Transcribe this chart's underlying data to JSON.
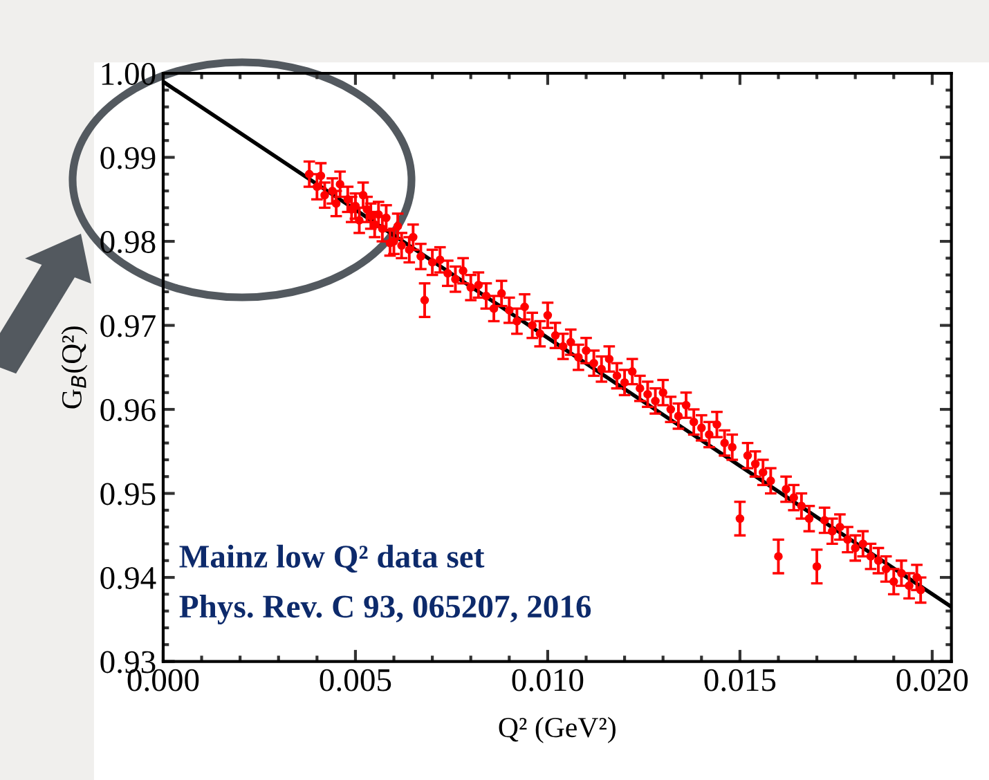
{
  "chart_data": {
    "type": "scatter",
    "xlabel": "Q² (GeV²)",
    "ylabel": "G$_{B}$(Q²)",
    "xlim": [
      0.0,
      0.0205
    ],
    "ylim": [
      0.93,
      1.0
    ],
    "xticks": [
      {
        "value": 0.0,
        "label": "0.000"
      },
      {
        "value": 0.005,
        "label": "0.005"
      },
      {
        "value": 0.01,
        "label": "0.010"
      },
      {
        "value": 0.015,
        "label": "0.015"
      },
      {
        "value": 0.02,
        "label": "0.020"
      }
    ],
    "yticks": [
      {
        "value": 0.93,
        "label": "0.93"
      },
      {
        "value": 0.94,
        "label": "0.94"
      },
      {
        "value": 0.95,
        "label": "0.95"
      },
      {
        "value": 0.96,
        "label": "0.96"
      },
      {
        "value": 0.97,
        "label": "0.97"
      },
      {
        "value": 0.98,
        "label": "0.98"
      },
      {
        "value": 0.99,
        "label": "0.99"
      },
      {
        "value": 1.0,
        "label": "1.00"
      }
    ],
    "grid": false,
    "legend": false,
    "annotations": [
      "Mainz low Q² data set",
      "Phys. Rev. C 93, 065207, 2016"
    ],
    "series": [
      {
        "type": "scatter",
        "marker": "circle",
        "color": "#ff0000",
        "x": [
          0.0038,
          0.004,
          0.0041,
          0.0042,
          0.0044,
          0.0045,
          0.0046,
          0.0048,
          0.0049,
          0.005,
          0.0051,
          0.0052,
          0.0053,
          0.0054,
          0.0055,
          0.0056,
          0.0057,
          0.0058,
          0.0059,
          0.006,
          0.0061,
          0.0062,
          0.0064,
          0.0065,
          0.0067,
          0.0068,
          0.007,
          0.0072,
          0.0074,
          0.0076,
          0.0078,
          0.008,
          0.0082,
          0.0084,
          0.0086,
          0.0088,
          0.009,
          0.0092,
          0.0094,
          0.0096,
          0.0098,
          0.01,
          0.0102,
          0.0104,
          0.0106,
          0.0108,
          0.011,
          0.0112,
          0.0114,
          0.0116,
          0.0118,
          0.012,
          0.0122,
          0.0124,
          0.0126,
          0.0128,
          0.013,
          0.0132,
          0.0134,
          0.0136,
          0.0138,
          0.014,
          0.0142,
          0.0144,
          0.0146,
          0.0148,
          0.015,
          0.0152,
          0.0154,
          0.0156,
          0.0158,
          0.016,
          0.0162,
          0.0164,
          0.0166,
          0.0168,
          0.017,
          0.0172,
          0.0174,
          0.0176,
          0.0178,
          0.018,
          0.0182,
          0.0184,
          0.0186,
          0.0188,
          0.019,
          0.0192,
          0.0194,
          0.0196,
          0.0197
        ],
        "values": [
          0.988,
          0.9865,
          0.9878,
          0.9855,
          0.986,
          0.9845,
          0.9868,
          0.985,
          0.9838,
          0.9842,
          0.9825,
          0.9855,
          0.9838,
          0.983,
          0.982,
          0.9832,
          0.9815,
          0.9828,
          0.9798,
          0.98,
          0.9818,
          0.9795,
          0.979,
          0.9805,
          0.9782,
          0.973,
          0.9775,
          0.9778,
          0.9762,
          0.9755,
          0.9765,
          0.9745,
          0.9748,
          0.9735,
          0.972,
          0.9738,
          0.9718,
          0.9705,
          0.9722,
          0.97,
          0.969,
          0.9712,
          0.9688,
          0.9675,
          0.968,
          0.9662,
          0.967,
          0.9655,
          0.9648,
          0.966,
          0.964,
          0.9632,
          0.9645,
          0.9625,
          0.9618,
          0.961,
          0.962,
          0.96,
          0.9592,
          0.9605,
          0.9585,
          0.9578,
          0.957,
          0.9582,
          0.956,
          0.9555,
          0.947,
          0.9545,
          0.9535,
          0.9525,
          0.9515,
          0.9425,
          0.9505,
          0.9495,
          0.9485,
          0.947,
          0.9413,
          0.9468,
          0.9455,
          0.946,
          0.9445,
          0.9435,
          0.944,
          0.9425,
          0.942,
          0.941,
          0.9395,
          0.9405,
          0.939,
          0.94,
          0.9385
        ],
        "errors": [
          0.0015,
          0.0015,
          0.0015,
          0.0015,
          0.0015,
          0.0015,
          0.0015,
          0.0015,
          0.0015,
          0.0015,
          0.0015,
          0.0015,
          0.0015,
          0.0015,
          0.0015,
          0.0015,
          0.0015,
          0.0015,
          0.0015,
          0.0015,
          0.0015,
          0.0015,
          0.0015,
          0.0015,
          0.0015,
          0.002,
          0.0015,
          0.0015,
          0.0015,
          0.0015,
          0.0015,
          0.0015,
          0.0015,
          0.0015,
          0.0015,
          0.0015,
          0.0015,
          0.0015,
          0.0015,
          0.0015,
          0.0015,
          0.0015,
          0.0015,
          0.0015,
          0.0015,
          0.0015,
          0.0015,
          0.0015,
          0.0015,
          0.0015,
          0.0015,
          0.0015,
          0.0015,
          0.0015,
          0.0015,
          0.0015,
          0.0015,
          0.0015,
          0.0015,
          0.0015,
          0.0015,
          0.0015,
          0.0015,
          0.0015,
          0.0015,
          0.0015,
          0.002,
          0.0015,
          0.0015,
          0.0015,
          0.0015,
          0.002,
          0.0015,
          0.0015,
          0.0015,
          0.0015,
          0.002,
          0.0015,
          0.0015,
          0.0015,
          0.0015,
          0.0015,
          0.0015,
          0.0015,
          0.0015,
          0.0015,
          0.0015,
          0.0015,
          0.0015,
          0.0015,
          0.0015
        ]
      },
      {
        "type": "line",
        "color": "#000000",
        "x": [
          0.0,
          0.0205
        ],
        "values": [
          0.999,
          0.9365
        ]
      }
    ]
  }
}
